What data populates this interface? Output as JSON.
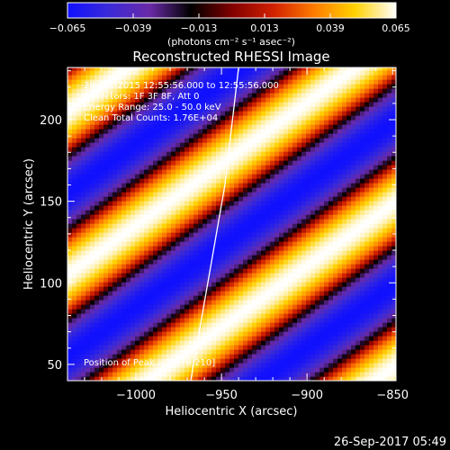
{
  "colorbar": {
    "ticks": [
      "-0.065",
      "-0.039",
      "-0.013",
      "0.013",
      "0.039",
      "0.065"
    ],
    "range": [
      -0.065,
      0.065
    ],
    "units": "(photons cm⁻² s⁻¹ asec⁻²)",
    "colors": [
      "#1010ff",
      "#3a2ad8",
      "#6a2aa8",
      "#000000",
      "#800000",
      "#d02000",
      "#ff7a00",
      "#ffd200",
      "#ffffff"
    ]
  },
  "chart_data": {
    "type": "heatmap",
    "title": "Reconstructed RHESSI Image",
    "xlabel": "Heliocentric X (arcsec)",
    "ylabel": "Heliocentric Y (arcsec)",
    "xlim": [
      -1040,
      -848
    ],
    "ylim": [
      40,
      232
    ],
    "xticks": [
      -1000,
      -950,
      -900,
      -850
    ],
    "xtick_labels": [
      "−1000",
      "−950",
      "−900",
      "−850"
    ],
    "yticks": [
      50,
      100,
      150,
      200
    ],
    "ytick_labels": [
      "50",
      "100",
      "150",
      "200"
    ],
    "pattern": {
      "description_free": true,
      "stripe_direction_deg": 37,
      "period_arcsec": 80,
      "amplitude": 0.065
    },
    "limb_curve": [
      [
        -968,
        40
      ],
      [
        -958,
        100
      ],
      [
        -948,
        160
      ],
      [
        -940,
        232
      ]
    ],
    "annotations": [
      "29-Oct-2015 12:55:56.000 to 12:55:56.000",
      "Detectors: 1F 3F 8F, Att 0",
      "Energy Range: 25.0 - 50.0 keV",
      "Clean   Total Counts: 1.76E+04",
      "Position of Peak = [-978,210]"
    ]
  },
  "footer": {
    "timestamp": "26-Sep-2017 05:49"
  }
}
